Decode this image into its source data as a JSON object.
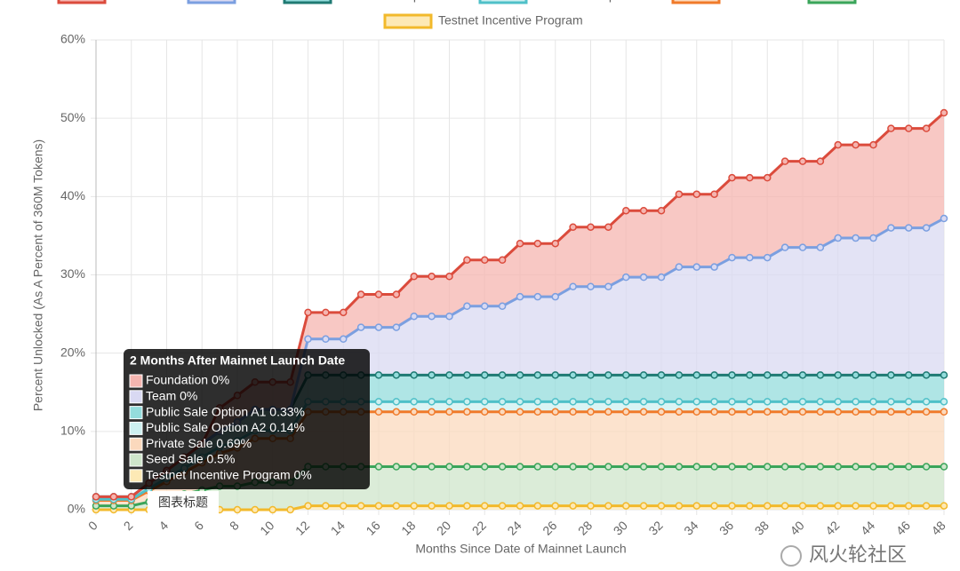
{
  "chart_data": {
    "type": "area",
    "stacked": true,
    "x_label": "Months Since Date of Mainnet Launch",
    "y_label": "Percent Unlocked (As A Percent of 360M Tokens)",
    "x": [
      0,
      1,
      2,
      3,
      4,
      5,
      6,
      7,
      8,
      9,
      10,
      11,
      12,
      13,
      14,
      15,
      16,
      17,
      18,
      19,
      20,
      21,
      22,
      23,
      24,
      25,
      26,
      27,
      28,
      29,
      30,
      31,
      32,
      33,
      34,
      35,
      36,
      37,
      38,
      39,
      40,
      41,
      42,
      43,
      44,
      45,
      46,
      47,
      48
    ],
    "xlim": [
      0,
      48
    ],
    "xticks": [
      0,
      2,
      4,
      6,
      8,
      10,
      12,
      14,
      16,
      18,
      20,
      22,
      24,
      26,
      28,
      30,
      32,
      34,
      36,
      38,
      40,
      42,
      44,
      46,
      48
    ],
    "ylim": [
      0,
      60
    ],
    "yticks": [
      {
        "value": 0,
        "label": "0%"
      },
      {
        "value": 10,
        "label": "10%"
      },
      {
        "value": 20,
        "label": "20%"
      },
      {
        "value": 30,
        "label": "30%"
      },
      {
        "value": 40,
        "label": "40%"
      },
      {
        "value": 50,
        "label": "50%"
      },
      {
        "value": 60,
        "label": "60%"
      }
    ],
    "grid": true,
    "series": [
      {
        "name": "Foundation",
        "color": "#db4b3c",
        "fill": "#f5b5b0",
        "values": [
          0,
          0,
          0,
          0,
          0,
          0,
          0,
          3.0,
          3.4,
          3.5,
          3.5,
          3.5,
          3.4,
          3.4,
          3.4,
          4.2,
          4.2,
          4.2,
          5.1,
          5.1,
          5.1,
          5.9,
          5.9,
          5.9,
          6.8,
          6.8,
          6.8,
          7.6,
          7.6,
          7.6,
          8.5,
          8.5,
          8.5,
          9.3,
          9.3,
          9.3,
          10.2,
          10.2,
          10.2,
          11.0,
          11.0,
          11.0,
          11.9,
          11.9,
          11.9,
          12.7,
          12.7,
          12.7,
          13.5
        ]
      },
      {
        "name": "Team",
        "color": "#7b9fe0",
        "fill": "#d9d9f2",
        "values": [
          0,
          0,
          0,
          0,
          0,
          0,
          0,
          0,
          0,
          0,
          0,
          0,
          4.6,
          4.6,
          4.6,
          6.1,
          6.1,
          6.1,
          7.5,
          7.5,
          7.5,
          8.8,
          8.8,
          8.8,
          10.0,
          10.0,
          10.0,
          11.3,
          11.3,
          11.3,
          12.5,
          12.5,
          12.5,
          13.8,
          13.8,
          13.8,
          15.0,
          15.0,
          15.0,
          16.3,
          16.3,
          16.3,
          17.5,
          17.5,
          17.5,
          18.8,
          18.8,
          18.8,
          20.0
        ]
      },
      {
        "name": "Public Sale Option A1",
        "color": "#1f7a73",
        "fill": "#94dcdc",
        "values": [
          0.33,
          0.33,
          0.33,
          0.7,
          1.0,
          1.4,
          1.7,
          2.0,
          2.4,
          2.7,
          2.7,
          2.7,
          3.4,
          3.4,
          3.4,
          3.4,
          3.4,
          3.4,
          3.4,
          3.4,
          3.4,
          3.4,
          3.4,
          3.4,
          3.4,
          3.4,
          3.4,
          3.4,
          3.4,
          3.4,
          3.4,
          3.4,
          3.4,
          3.4,
          3.4,
          3.4,
          3.4,
          3.4,
          3.4,
          3.4,
          3.4,
          3.4,
          3.4,
          3.4,
          3.4,
          3.4,
          3.4,
          3.4,
          3.4
        ]
      },
      {
        "name": "Public Sale Option A2",
        "color": "#4fc0c8",
        "fill": "#cdf0f0",
        "values": [
          0.14,
          0.14,
          0.14,
          0.3,
          0.4,
          0.5,
          0.7,
          0.8,
          0.9,
          1.0,
          1.0,
          1.0,
          1.3,
          1.3,
          1.3,
          1.3,
          1.3,
          1.3,
          1.3,
          1.3,
          1.3,
          1.3,
          1.3,
          1.3,
          1.3,
          1.3,
          1.3,
          1.3,
          1.3,
          1.3,
          1.3,
          1.3,
          1.3,
          1.3,
          1.3,
          1.3,
          1.3,
          1.3,
          1.3,
          1.3,
          1.3,
          1.3,
          1.3,
          1.3,
          1.3,
          1.3,
          1.3,
          1.3,
          1.3
        ]
      },
      {
        "name": "Private Sale",
        "color": "#f07a2a",
        "fill": "#fbd9bd",
        "values": [
          0.69,
          0.69,
          0.69,
          1.4,
          2.1,
          2.8,
          3.5,
          4.2,
          4.9,
          5.6,
          5.6,
          5.6,
          7.0,
          7.0,
          7.0,
          7.0,
          7.0,
          7.0,
          7.0,
          7.0,
          7.0,
          7.0,
          7.0,
          7.0,
          7.0,
          7.0,
          7.0,
          7.0,
          7.0,
          7.0,
          7.0,
          7.0,
          7.0,
          7.0,
          7.0,
          7.0,
          7.0,
          7.0,
          7.0,
          7.0,
          7.0,
          7.0,
          7.0,
          7.0,
          7.0,
          7.0,
          7.0,
          7.0,
          7.0
        ]
      },
      {
        "name": "Seed Sale",
        "color": "#3aa55a",
        "fill": "#cfe6cb",
        "values": [
          0.5,
          0.5,
          0.5,
          1.0,
          1.5,
          2.0,
          2.5,
          3.0,
          3.0,
          3.5,
          3.5,
          3.5,
          5.0,
          5.0,
          5.0,
          5.0,
          5.0,
          5.0,
          5.0,
          5.0,
          5.0,
          5.0,
          5.0,
          5.0,
          5.0,
          5.0,
          5.0,
          5.0,
          5.0,
          5.0,
          5.0,
          5.0,
          5.0,
          5.0,
          5.0,
          5.0,
          5.0,
          5.0,
          5.0,
          5.0,
          5.0,
          5.0,
          5.0,
          5.0,
          5.0,
          5.0,
          5.0,
          5.0,
          5.0
        ]
      },
      {
        "name": "Testnet Incentive Program",
        "color": "#f2b92b",
        "fill": "#fde9b5",
        "values": [
          0,
          0,
          0,
          0,
          0,
          0,
          0,
          0,
          0,
          0,
          0,
          0,
          0.5,
          0.5,
          0.5,
          0.5,
          0.5,
          0.5,
          0.5,
          0.5,
          0.5,
          0.5,
          0.5,
          0.5,
          0.5,
          0.5,
          0.5,
          0.5,
          0.5,
          0.5,
          0.5,
          0.5,
          0.5,
          0.5,
          0.5,
          0.5,
          0.5,
          0.5,
          0.5,
          0.5,
          0.5,
          0.5,
          0.5,
          0.5,
          0.5,
          0.5,
          0.5,
          0.5,
          0.5
        ]
      }
    ],
    "tooltip": {
      "title": "2 Months After Mainnet Launch Date",
      "items": [
        "Foundation 0%",
        "Team 0%",
        "Public Sale Option A1 0.33%",
        "Public Sale Option A2 0.14%",
        "Private Sale 0.69%",
        "Seed Sale 0.5%",
        "Testnet Incentive Program 0%"
      ]
    }
  },
  "overlay_label": "图表标题",
  "watermark": "风火轮社区"
}
